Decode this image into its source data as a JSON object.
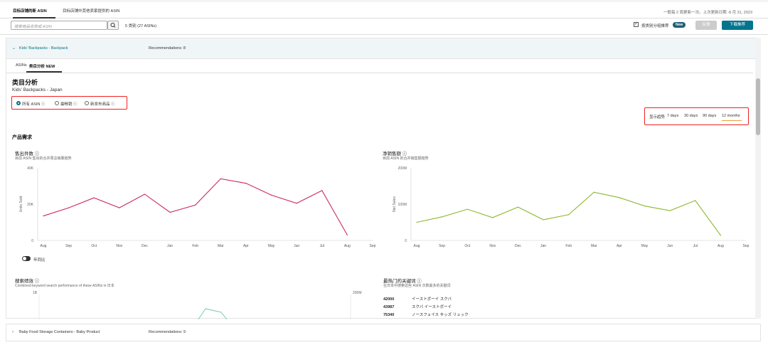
{
  "tabs": [
    "目标店铺的新 ASIN",
    "目标店铺中其他卖家提供的 ASIN"
  ],
  "update_info": "一般每 2 周更新一次。上次更新日期 -8 月 31, 2023",
  "search": {
    "placeholder": "搜索商品名称或 ASIN",
    "result": "5 类别 (27 ASINs)"
  },
  "toolbar": {
    "checkbox_label": "按类别分组推荐",
    "new_badge": "New",
    "btn1": "反馈",
    "btn2": "下载推荐"
  },
  "category": {
    "name": "Kids' Backpacks - Backpack",
    "recommendations": "Recommendations: 8"
  },
  "subtabs": [
    "ASINs",
    "类目分析 NEW"
  ],
  "analysis": {
    "title": "类目分析",
    "subtitle": "Kids' Backpacks - Japan"
  },
  "filters": [
    "所有 ASIN ⓘ",
    "最畅销 ⓘ",
    "新发布商品 ⓘ"
  ],
  "time": {
    "label": "显示趋势",
    "options": [
      "7 days",
      "30 days",
      "90 days",
      "12 months"
    ]
  },
  "section_demand": "产品需求",
  "units_chart": {
    "title": "售出件数 ⓘ",
    "subtitle": "目前 ASIN 售出的合并周总销量趋势",
    "ylabel": "Units Sold",
    "yticks": [
      "40K",
      "20K",
      "0"
    ],
    "color": "#cc2a5a"
  },
  "sales_chart": {
    "title": "净销售额 ⓘ",
    "subtitle": "目前 ASIN 的合并销售额趋势",
    "ylabel": "Net Sales",
    "yticks": [
      "200M",
      "100M",
      "0"
    ],
    "color": "#8ab82a"
  },
  "months": [
    "Aug",
    "Sep",
    "Oct",
    "Nov",
    "Dec",
    "Jan",
    "Feb",
    "Mar",
    "Apr",
    "May",
    "Jun",
    "Jul",
    "Aug",
    "Sep"
  ],
  "chart_data": [
    {
      "type": "line",
      "title": "售出件数",
      "ylabel": "Units Sold",
      "categories": [
        "Aug",
        "Sep",
        "Oct",
        "Nov",
        "Dec",
        "Jan",
        "Feb",
        "Mar",
        "Apr",
        "May",
        "Jun",
        "Jul",
        "Aug",
        "Sep"
      ],
      "values": [
        13500,
        18000,
        23500,
        18000,
        25500,
        15500,
        19500,
        34000,
        31500,
        25000,
        20500,
        27500,
        3000,
        null
      ],
      "ylim": [
        0,
        40000
      ]
    },
    {
      "type": "line",
      "title": "净销售额",
      "ylabel": "Net Sales",
      "categories": [
        "Aug",
        "Sep",
        "Oct",
        "Nov",
        "Dec",
        "Jan",
        "Feb",
        "Mar",
        "Apr",
        "May",
        "Jun",
        "Jul",
        "Aug",
        "Sep"
      ],
      "values": [
        50,
        65,
        86,
        63,
        92,
        57,
        71,
        133,
        118,
        95,
        82,
        110,
        14,
        null
      ],
      "ylim": [
        0,
        200
      ]
    }
  ],
  "yoy_label": "年同比",
  "search_perf": {
    "title": "搜索绩效 ⓘ",
    "subtitle": "Combined keyword search performance of these ASINs in 日本",
    "left_tick": "1B",
    "right_tick": "200M"
  },
  "keywords": {
    "title": "最热门的关键词 ⓘ",
    "subtitle": "在日本中搜索这些 ASIN 次数最多的关键词",
    "rows": [
      {
        "count": "42000",
        "term": "イーストボーイ スクバ"
      },
      {
        "count": "43987",
        "term": "スクバ イーストボーイ"
      },
      {
        "count": "75340",
        "term": "ノースフェイス キッズ リュック"
      }
    ]
  },
  "category2": {
    "name": "Baby Food Storage Containers - Baby Product",
    "recommendations": "Recommendations: 9"
  }
}
